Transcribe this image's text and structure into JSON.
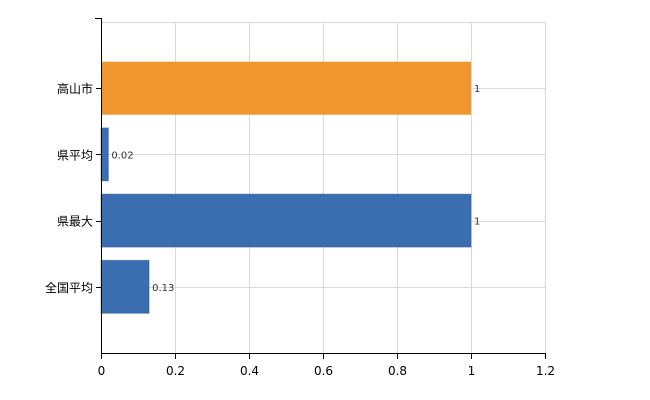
{
  "chart_data": {
    "type": "bar",
    "orientation": "horizontal",
    "categories": [
      "高山市",
      "県平均",
      "県最大",
      "全国平均"
    ],
    "values": [
      1,
      0.02,
      1,
      0.13
    ],
    "data_labels": [
      "1",
      "0.02",
      "1",
      "0.13"
    ],
    "bar_colors": [
      "#f0962e",
      "#3a6eb0",
      "#3a6eb0",
      "#3a6eb0"
    ],
    "xlim": [
      0,
      1.2
    ],
    "x_ticks": [
      0,
      0.2,
      0.4,
      0.6,
      0.8,
      1,
      1.2
    ],
    "x_tick_labels": [
      "0",
      "0.2",
      "0.4",
      "0.6",
      "0.8",
      "1",
      "1.2"
    ],
    "title": "",
    "xlabel": "",
    "ylabel": "",
    "grid": true,
    "legend": "none"
  },
  "colors": {
    "highlight": "#f0962e",
    "default": "#3a6eb0",
    "grid": "#d9d9d9",
    "axis": "#000000"
  }
}
